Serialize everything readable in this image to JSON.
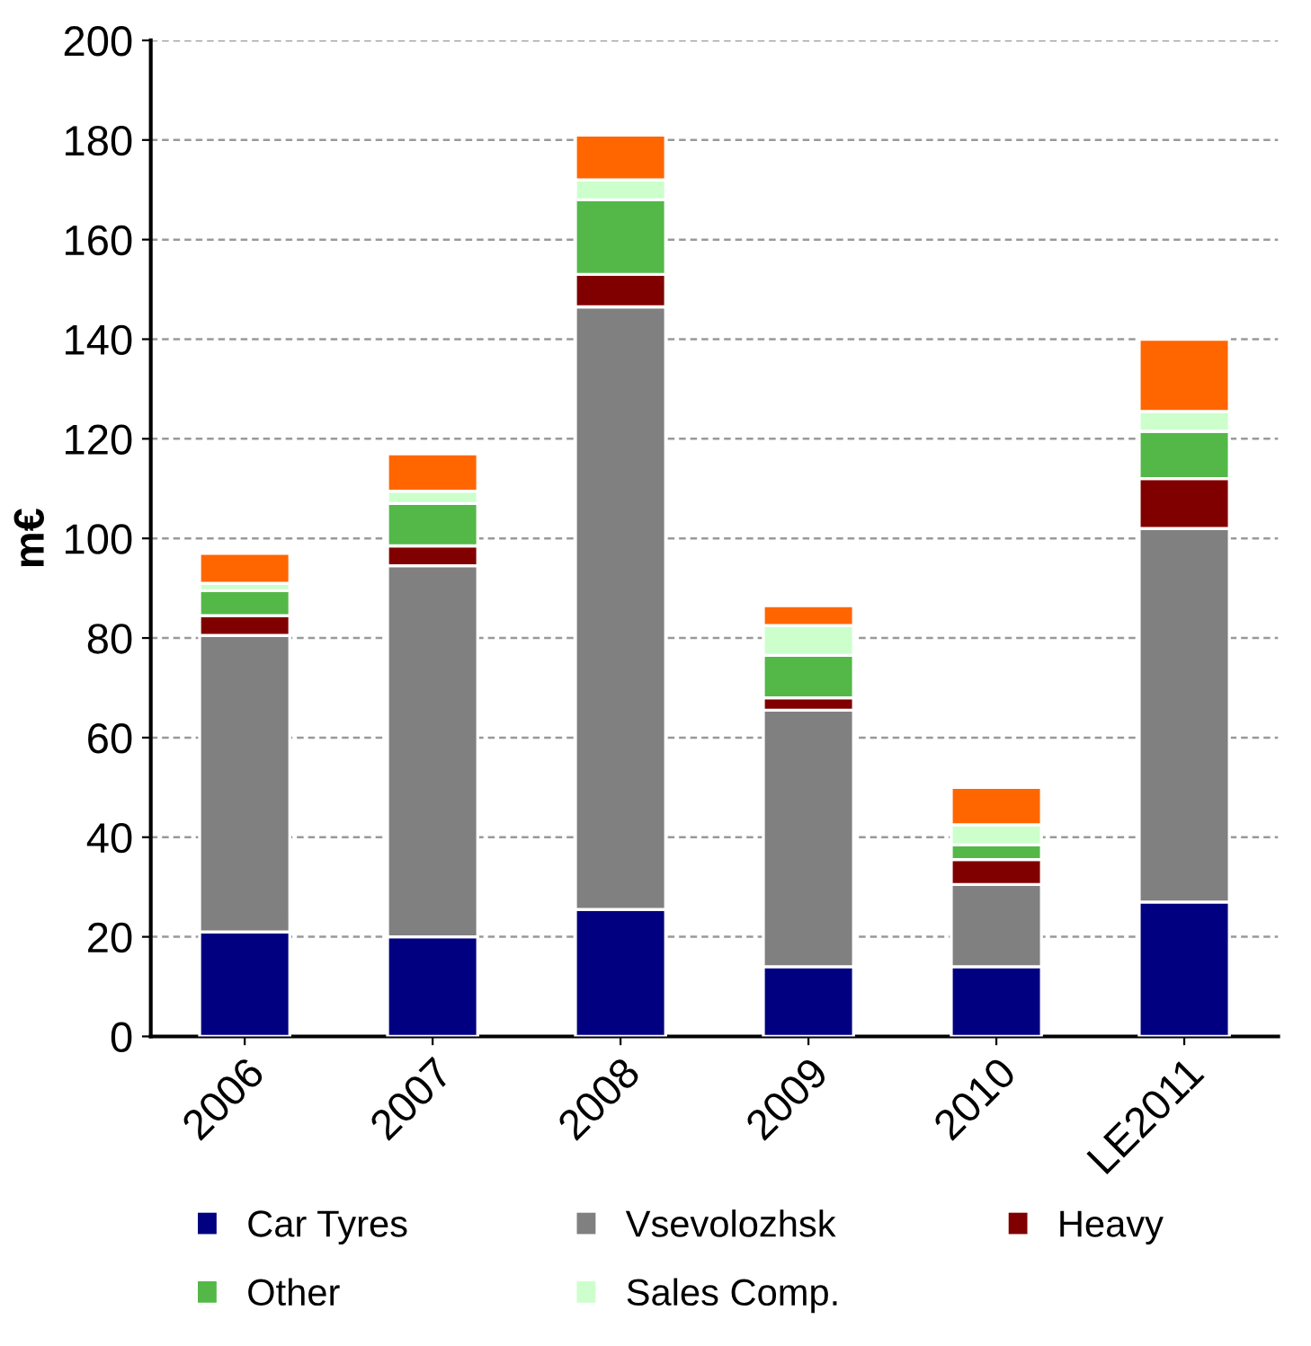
{
  "chart_data": {
    "type": "bar",
    "stacked": true,
    "ylabel": "m€",
    "categories": [
      "2006",
      "2007",
      "2008",
      "2009",
      "2010",
      "LE2011"
    ],
    "series": [
      {
        "name": "Car Tyres",
        "color": "#000080",
        "values": [
          21,
          20,
          25.5,
          14,
          14,
          27
        ]
      },
      {
        "name": "Vsevolozhsk",
        "color": "#808080",
        "values": [
          59.5,
          74.5,
          121,
          51.5,
          16.5,
          75
        ]
      },
      {
        "name": "Heavy",
        "color": "#800000",
        "values": [
          4,
          4,
          6.5,
          2.5,
          5,
          10
        ]
      },
      {
        "name": "Other",
        "color": "#53b848",
        "values": [
          5,
          8.5,
          15,
          8.5,
          3,
          9.5
        ]
      },
      {
        "name": "Sales Comp.",
        "color": "#ccffcc",
        "values": [
          1.5,
          2.5,
          4,
          6,
          4,
          4
        ]
      },
      {
        "color": "#ff6600",
        "values": [
          6,
          7.5,
          9,
          4,
          7.5,
          14.5
        ]
      }
    ],
    "ylim": [
      0,
      200
    ],
    "yticks": [
      0,
      20,
      40,
      60,
      80,
      100,
      120,
      140,
      160,
      180,
      200
    ],
    "grid": "y",
    "legend": "bottom"
  }
}
